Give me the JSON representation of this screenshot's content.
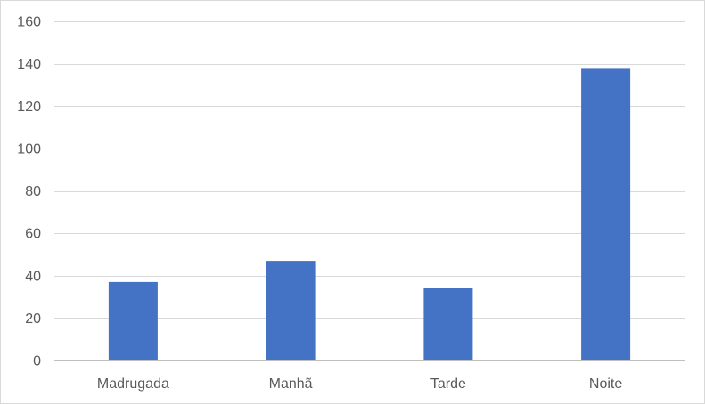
{
  "chart_data": {
    "type": "bar",
    "title": "",
    "xlabel": "",
    "ylabel": "",
    "categories": [
      "Madrugada",
      "Manhã",
      "Tarde",
      "Noite"
    ],
    "values": [
      37,
      47,
      34,
      138
    ],
    "ylim": [
      0,
      160
    ],
    "yticks": [
      0,
      20,
      40,
      60,
      80,
      100,
      120,
      140,
      160
    ],
    "grid": true,
    "legend": "none",
    "colors": {
      "bar": "#4472C4"
    }
  }
}
